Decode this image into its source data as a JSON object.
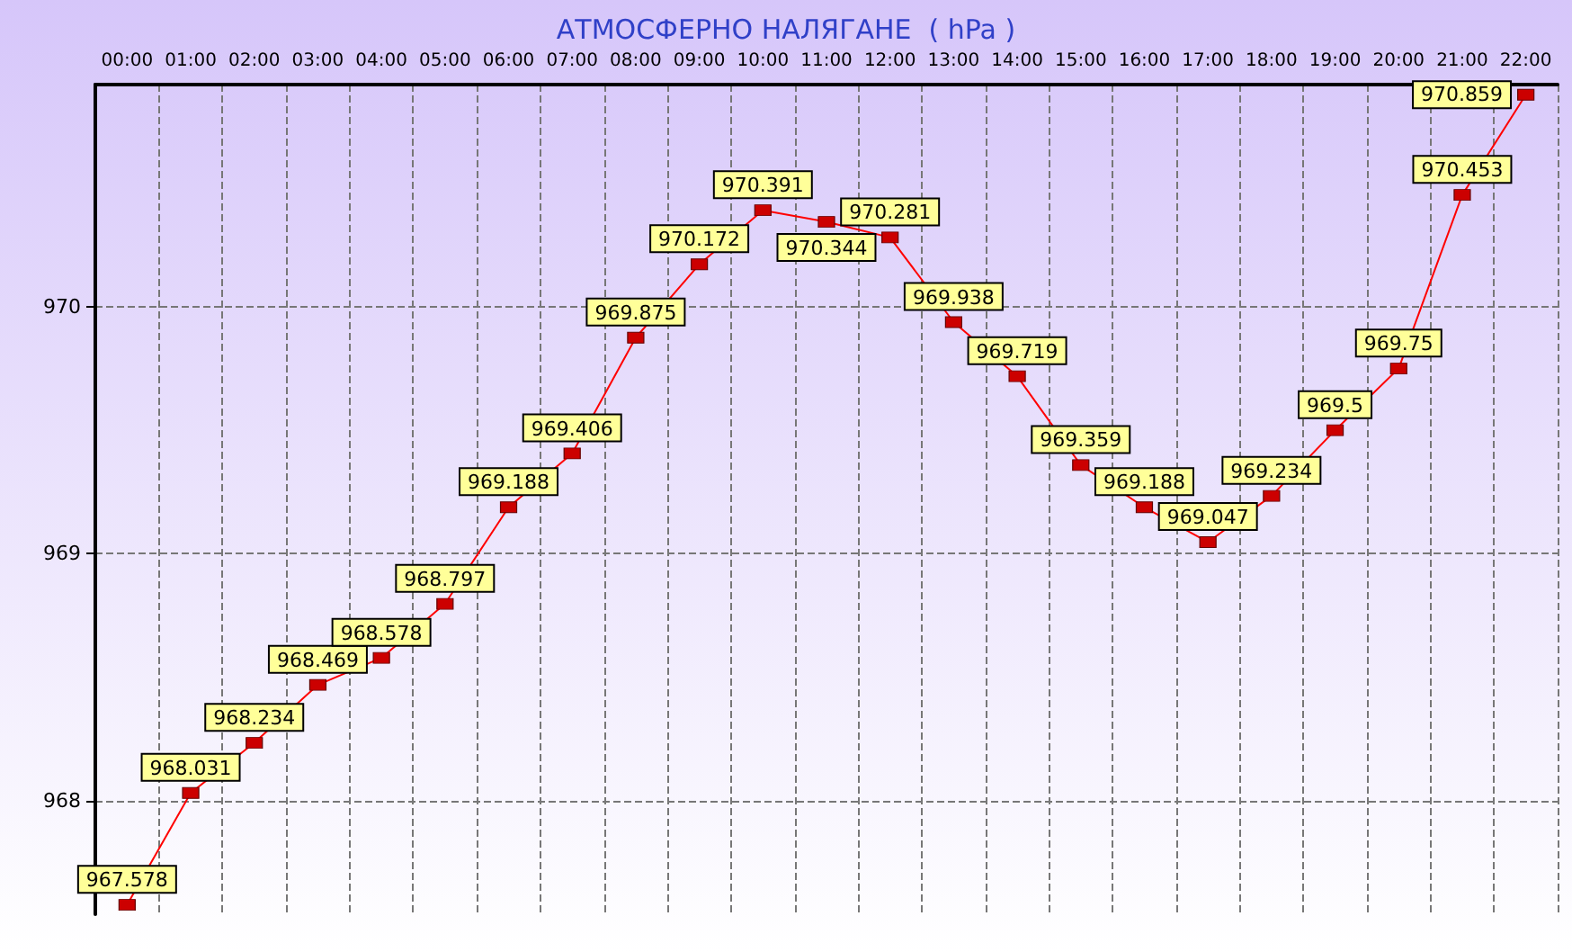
{
  "chart_data": {
    "type": "line",
    "title": "АТМОСФЕРНО НАЛЯГАНЕ  ( hPa )",
    "categories": [
      "00:00",
      "01:00",
      "02:00",
      "03:00",
      "04:00",
      "05:00",
      "06:00",
      "07:00",
      "08:00",
      "09:00",
      "10:00",
      "11:00",
      "12:00",
      "13:00",
      "14:00",
      "15:00",
      "16:00",
      "17:00",
      "18:00",
      "19:00",
      "20:00",
      "21:00",
      "22:00"
    ],
    "series": [
      {
        "color": "#ff0000",
        "values": [
          967.578,
          968.031,
          968.234,
          968.469,
          968.578,
          968.797,
          969.188,
          969.406,
          969.875,
          970.172,
          970.391,
          970.344,
          970.281,
          969.938,
          969.719,
          969.359,
          969.188,
          969.047,
          969.234,
          969.5,
          969.75,
          970.453,
          970.859
        ]
      }
    ],
    "ylim": [
      967.54,
      970.9
    ],
    "yticks": [
      968,
      969,
      970
    ],
    "grid": true,
    "marker": "square",
    "line_style": "solid",
    "data_labels": true
  }
}
